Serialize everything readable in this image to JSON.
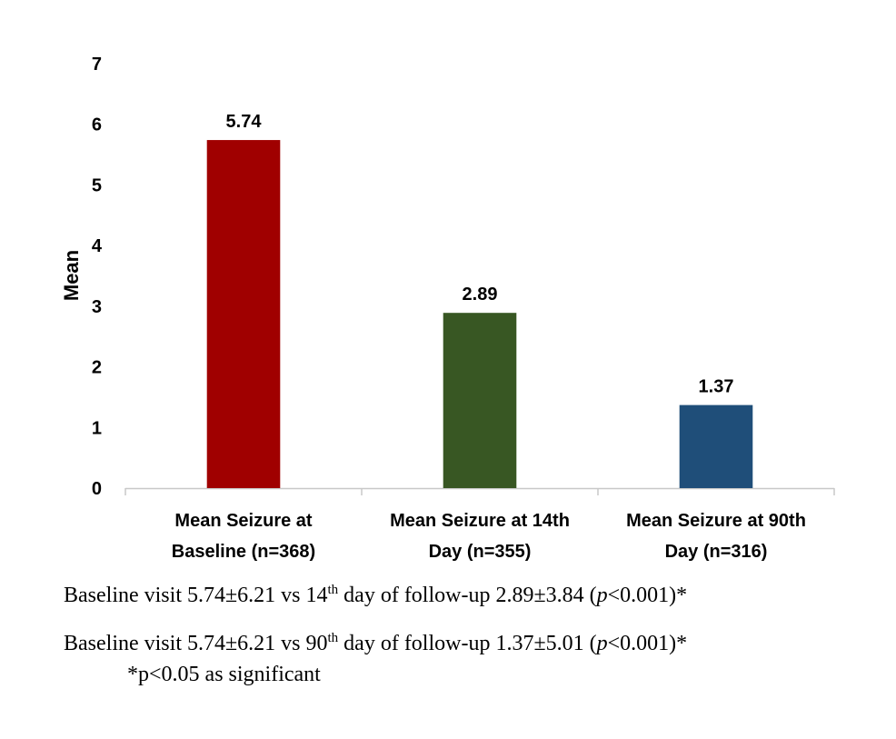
{
  "chart_data": {
    "type": "bar",
    "categories": [
      [
        "Mean Seizure at",
        "Baseline (n=368)"
      ],
      [
        "Mean Seizure at 14th",
        "Day (n=355)"
      ],
      [
        "Mean Seizure at 90th",
        "Day (n=316)"
      ]
    ],
    "values": [
      5.74,
      2.89,
      1.37
    ],
    "data_labels": [
      "5.74",
      "2.89",
      "1.37"
    ],
    "colors": [
      "#a00000",
      "#385723",
      "#1f4e79"
    ],
    "ylabel": "Mean",
    "ylim": [
      0,
      7
    ],
    "yticks": [
      0,
      1,
      2,
      3,
      4,
      5,
      6,
      7
    ],
    "grid": false,
    "legend": "none"
  },
  "footnotes": {
    "line1": {
      "pre": "Baseline visit 5.74±6.21 vs 14",
      "sup": "th",
      "mid": " day of follow-up 2.89±3.84 (",
      "italic": "p",
      "post": "<0.001)*"
    },
    "line2": {
      "pre": "Baseline visit 5.74±6.21 vs 90",
      "sup": "th",
      "mid": " day of follow-up 1.37±5.01 (",
      "italic": "p",
      "post": "<0.001)*"
    },
    "line3": "*p<0.05 as significant"
  }
}
